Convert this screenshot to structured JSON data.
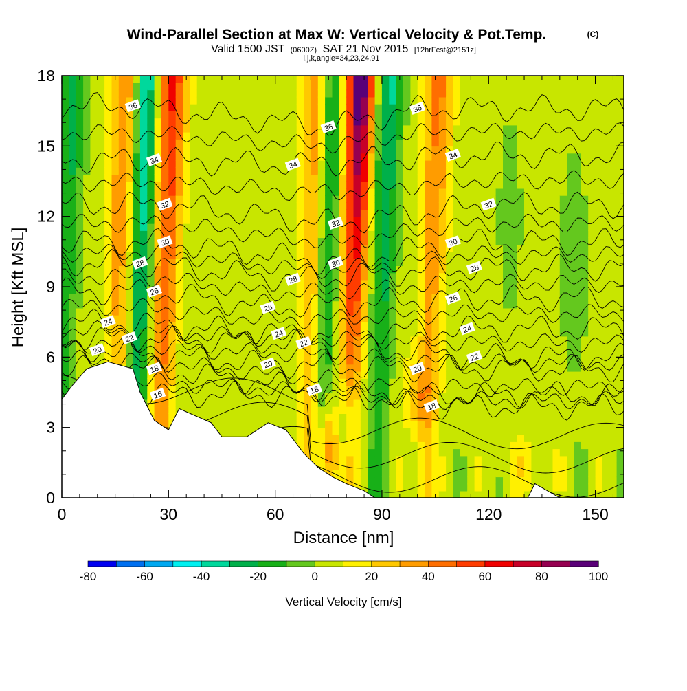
{
  "title": {
    "main": "Wind-Parallel Section at Max W: Vertical Velocity & Pot.Temp.",
    "copyright": "(C)",
    "valid_prefix": "Valid 1500 JST",
    "valid_utc": "(0600Z)",
    "valid_date": "SAT 21 Nov 2015",
    "forecast": "[12hrFcst@2151z]",
    "params": "i,j,k,angle=34,23,24,91"
  },
  "colors": {
    "w_palette": [
      "#0000f0",
      "#0070f0",
      "#00a8f0",
      "#00f0f0",
      "#00d89c",
      "#00b04a",
      "#18b018",
      "#64c81e",
      "#c8e600",
      "#fff000",
      "#ffc800",
      "#ff9c00",
      "#ff6e00",
      "#ff3c00",
      "#f00000",
      "#c80028",
      "#960050",
      "#5a0078"
    ],
    "contour": "#000000",
    "terrain": "#ffffff"
  },
  "chart_data": {
    "type": "heatmap",
    "xlabel": "Distance [nm]",
    "ylabel": "Height [Kft MSL]",
    "xlim": [
      0,
      158
    ],
    "ylim": [
      0,
      18
    ],
    "xticks": [
      0,
      30,
      60,
      90,
      120,
      150
    ],
    "yticks": [
      0,
      3,
      6,
      9,
      12,
      15,
      18
    ],
    "colorbar": {
      "label": "Vertical Velocity [cm/s]",
      "ticks": [
        -80,
        -60,
        -40,
        -20,
        0,
        20,
        40,
        60,
        80,
        100
      ],
      "min": -80,
      "max": 100,
      "step": 10
    },
    "updraft_cores": [
      {
        "x": 18,
        "w": 40
      },
      {
        "x": 31,
        "w": 60
      },
      {
        "x": 72,
        "w": 40
      },
      {
        "x": 84,
        "w": 100
      },
      {
        "x": 106,
        "w": 40
      }
    ],
    "downdraft_cores": [
      {
        "x": 3,
        "w": -30
      },
      {
        "x": 24,
        "w": -50
      },
      {
        "x": 72,
        "w": -40
      },
      {
        "x": 92,
        "w": -40
      }
    ],
    "terrain": [
      {
        "x": 0,
        "z": 4.2
      },
      {
        "x": 3,
        "z": 4.8
      },
      {
        "x": 7,
        "z": 5.5
      },
      {
        "x": 13,
        "z": 5.8
      },
      {
        "x": 20,
        "z": 5.5
      },
      {
        "x": 22,
        "z": 4.5
      },
      {
        "x": 26,
        "z": 3.3
      },
      {
        "x": 30,
        "z": 2.9
      },
      {
        "x": 33,
        "z": 3.8
      },
      {
        "x": 42,
        "z": 3.2
      },
      {
        "x": 45,
        "z": 2.6
      },
      {
        "x": 52,
        "z": 2.6
      },
      {
        "x": 55,
        "z": 2.9
      },
      {
        "x": 58,
        "z": 3.2
      },
      {
        "x": 63,
        "z": 2.9
      },
      {
        "x": 68,
        "z": 1.9
      },
      {
        "x": 72,
        "z": 1.3
      },
      {
        "x": 76,
        "z": 0.9
      },
      {
        "x": 80,
        "z": 0.6
      },
      {
        "x": 85,
        "z": 0.3
      },
      {
        "x": 88,
        "z": 0.0
      },
      {
        "x": 131,
        "z": 0.0
      },
      {
        "x": 133,
        "z": 0.6
      },
      {
        "x": 140,
        "z": 0.0
      },
      {
        "x": 158,
        "z": 0.0
      }
    ],
    "theta_contour_labels": [
      {
        "text": "36",
        "x": 20,
        "z": 16.7
      },
      {
        "text": "36",
        "x": 75,
        "z": 15.8
      },
      {
        "text": "36",
        "x": 100,
        "z": 16.6
      },
      {
        "text": "34",
        "x": 26,
        "z": 14.4
      },
      {
        "text": "34",
        "x": 65,
        "z": 14.2
      },
      {
        "text": "34",
        "x": 110,
        "z": 14.6
      },
      {
        "text": "32",
        "x": 29,
        "z": 12.5
      },
      {
        "text": "32",
        "x": 77,
        "z": 11.7
      },
      {
        "text": "32",
        "x": 120,
        "z": 12.5
      },
      {
        "text": "30",
        "x": 29,
        "z": 10.9
      },
      {
        "text": "30",
        "x": 77,
        "z": 10.0
      },
      {
        "text": "30",
        "x": 110,
        "z": 10.9
      },
      {
        "text": "28",
        "x": 22,
        "z": 10.0
      },
      {
        "text": "28",
        "x": 65,
        "z": 9.3
      },
      {
        "text": "28",
        "x": 116,
        "z": 9.8
      },
      {
        "text": "26",
        "x": 26,
        "z": 8.8
      },
      {
        "text": "26",
        "x": 58,
        "z": 8.1
      },
      {
        "text": "26",
        "x": 110,
        "z": 8.5
      },
      {
        "text": "24",
        "x": 13,
        "z": 7.5
      },
      {
        "text": "24",
        "x": 61,
        "z": 7.0
      },
      {
        "text": "24",
        "x": 114,
        "z": 7.2
      },
      {
        "text": "22",
        "x": 19,
        "z": 6.8
      },
      {
        "text": "22",
        "x": 68,
        "z": 6.6
      },
      {
        "text": "22",
        "x": 116,
        "z": 6.0
      },
      {
        "text": "20",
        "x": 10,
        "z": 6.3
      },
      {
        "text": "20",
        "x": 58,
        "z": 5.7
      },
      {
        "text": "20",
        "x": 100,
        "z": 5.5
      },
      {
        "text": "18",
        "x": 26,
        "z": 5.5
      },
      {
        "text": "18",
        "x": 71,
        "z": 4.6
      },
      {
        "text": "18",
        "x": 104,
        "z": 3.9
      },
      {
        "text": "16",
        "x": 27,
        "z": 4.4
      }
    ]
  }
}
